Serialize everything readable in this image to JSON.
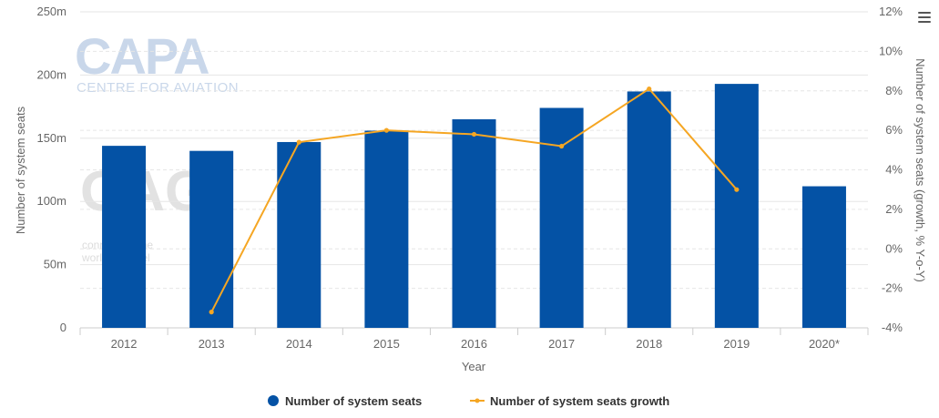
{
  "watermarks": {
    "capa_big": "CAPA",
    "capa_small": "CENTRE FOR AVIATION",
    "oag_big": "OAG",
    "oag_small_line1": "connecting the",
    "oag_small_line2": "world of travel"
  },
  "chart_data": {
    "type": "bar",
    "categories": [
      "2012",
      "2013",
      "2014",
      "2015",
      "2016",
      "2017",
      "2018",
      "2019",
      "2020*"
    ],
    "xlabel": "Year",
    "series": [
      {
        "name": "Number of system seats",
        "type": "bar",
        "axis": "left",
        "color": "#0452a5",
        "values": [
          144,
          140,
          147,
          156,
          165,
          174,
          187,
          193,
          112
        ]
      },
      {
        "name": "Number of system seats growth",
        "type": "line",
        "axis": "right",
        "color": "#f5a623",
        "values": [
          null,
          -3.2,
          5.4,
          6.0,
          5.8,
          5.2,
          8.1,
          3.0,
          null
        ]
      }
    ],
    "y_left": {
      "label": "Number of system seats",
      "min": 0,
      "max": 250,
      "ticks": [
        0,
        50,
        100,
        150,
        200,
        250
      ],
      "tick_labels": [
        "0",
        "50m",
        "100m",
        "150m",
        "200m",
        "250m"
      ]
    },
    "y_right": {
      "label": "Number of system seats (growth, % Y-o-Y)",
      "min": -4,
      "max": 12,
      "ticks": [
        -4,
        -2,
        0,
        2,
        4,
        6,
        8,
        10,
        12
      ],
      "tick_labels": [
        "-4%",
        "-2%",
        "0%",
        "2%",
        "4%",
        "6%",
        "8%",
        "10%",
        "12%"
      ]
    },
    "grid": true,
    "legend_position": "bottom-center"
  }
}
